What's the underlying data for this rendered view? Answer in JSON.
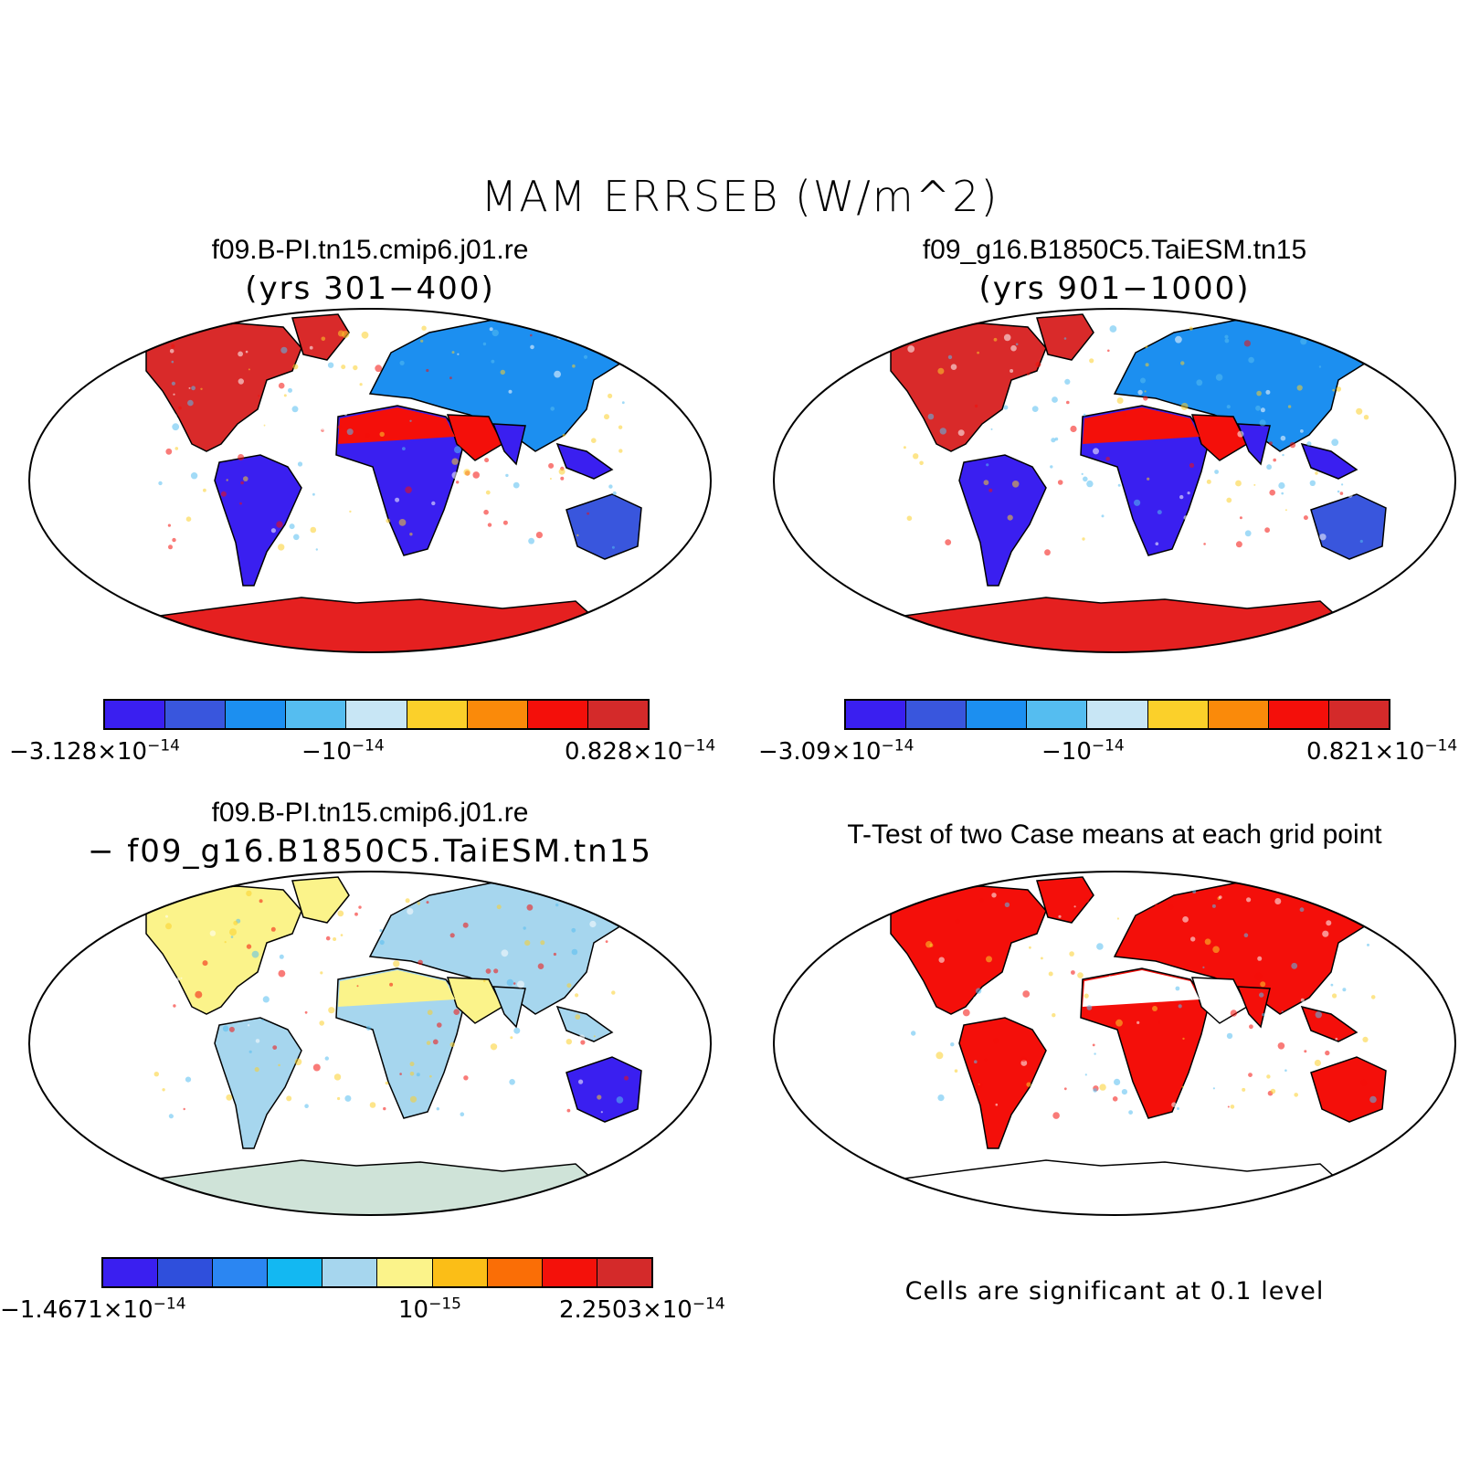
{
  "title": "MAM ERRSEB (W/m^2)",
  "panels": {
    "p1": {
      "title": "f09.B-PI.tn15.cmip6.j01.re",
      "subtitle": "(yrs 301−400)"
    },
    "p2": {
      "title": "f09_g16.B1850C5.TaiESM.tn15",
      "subtitle": "(yrs 901−1000)"
    },
    "p3": {
      "title": "f09.B-PI.tn15.cmip6.j01.re",
      "subtitle": "− f09_g16.B1850C5.TaiESM.tn15"
    },
    "p4": {
      "title": "T-Test of two Case means at each grid point",
      "note": "Cells are significant at 0.1 level"
    }
  },
  "colorbars": {
    "cb1": {
      "colors": [
        "#3a1ff0",
        "#3956dd",
        "#1c8ff0",
        "#55bdf0",
        "#c8e6f5",
        "#fbd02a",
        "#fa8a0a",
        "#f40f0a",
        "#d42a2a"
      ],
      "labels": [
        {
          "mant": "−3.128×10",
          "exp": "−14"
        },
        {
          "mant": "−10",
          "exp": "−14"
        },
        {
          "mant": "0.828×10",
          "exp": "−14"
        }
      ]
    },
    "cb2": {
      "colors": [
        "#3a1ff0",
        "#3956dd",
        "#1c8ff0",
        "#55bdf0",
        "#c8e6f5",
        "#fbd02a",
        "#fa8a0a",
        "#f40f0a",
        "#d42a2a"
      ],
      "labels": [
        {
          "mant": "−3.09×10",
          "exp": "−14"
        },
        {
          "mant": "−10",
          "exp": "−14"
        },
        {
          "mant": "0.821×10",
          "exp": "−14"
        }
      ]
    },
    "cb3": {
      "colors": [
        "#3a1ff0",
        "#2f4fdc",
        "#2b86f2",
        "#13b8f2",
        "#a6d6ee",
        "#fbf38a",
        "#fbbe17",
        "#fa6e06",
        "#f4110a",
        "#d42a2a"
      ],
      "labels": [
        {
          "mant": "−1.4671×10",
          "exp": "−14"
        },
        {
          "mant": "10",
          "exp": "−15"
        },
        {
          "mant": "2.2503×10",
          "exp": "−14"
        }
      ]
    }
  },
  "map_styles": {
    "p1": {
      "north": "#d92a2a",
      "tropics": "#3a1ff0",
      "desert": "#f40f0a",
      "mid": "#1c8ff0",
      "antarctica": "#e52020",
      "australia": "#3956dd"
    },
    "p2": {
      "north": "#d92a2a",
      "tropics": "#3a1ff0",
      "desert": "#f40f0a",
      "mid": "#1c8ff0",
      "antarctica": "#e52020",
      "australia": "#3956dd"
    },
    "p3": {
      "north": "#fbf38a",
      "tropics": "#a6d6ee",
      "desert": "#fbf38a",
      "mid": "#a6d6ee",
      "antarctica": "#cfe3d8",
      "australia": "#3a1ff0"
    },
    "p4": {
      "north": "#f40f0a",
      "tropics": "#f40f0a",
      "desert": "#ffffff",
      "mid": "#f40f0a",
      "antarctica": "#ffffff",
      "australia": "#f40f0a"
    }
  }
}
